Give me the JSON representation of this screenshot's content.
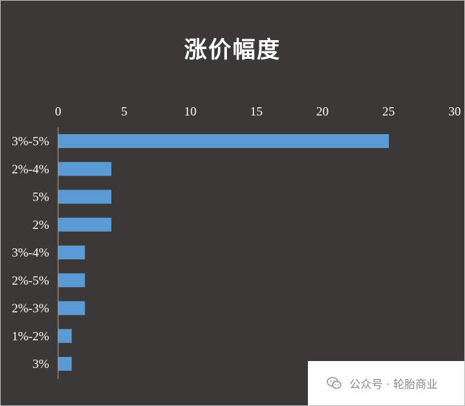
{
  "chart_data": {
    "type": "bar",
    "orientation": "horizontal",
    "title": "涨价幅度",
    "categories": [
      "3%-5%",
      "2%-4%",
      "5%",
      "2%",
      "3%-4%",
      "2%-5%",
      "2%-3%",
      "1%-2%",
      "3%"
    ],
    "values": [
      25,
      4,
      4,
      4,
      2,
      2,
      2,
      1,
      1
    ],
    "xlim": [
      0,
      30
    ],
    "xticks": [
      0,
      5,
      10,
      15,
      20,
      25,
      30
    ],
    "x_axis_position": "top",
    "grid": false,
    "legend": "none",
    "colors": {
      "bar": "#5b9bd5",
      "background": "#3b3938",
      "text": "#ffffff",
      "axis": "#a6a6a6"
    }
  },
  "watermark": {
    "text": "公众号 · 轮胎商业",
    "icon": "wechat-icon"
  }
}
